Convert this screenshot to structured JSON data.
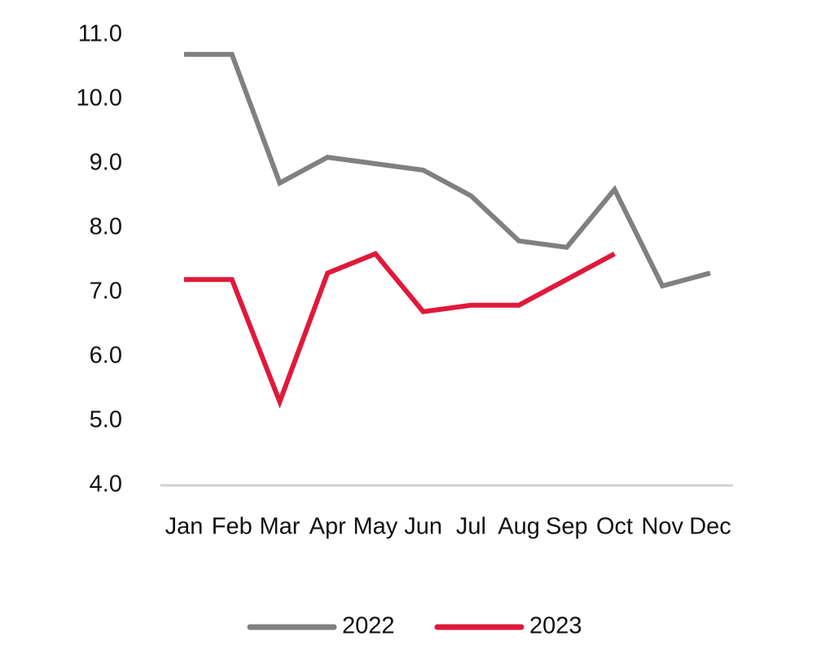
{
  "chart_data": {
    "type": "line",
    "categories": [
      "Jan",
      "Feb",
      "Mar",
      "Apr",
      "May",
      "Jun",
      "Jul",
      "Aug",
      "Sep",
      "Oct",
      "Nov",
      "Dec"
    ],
    "series": [
      {
        "name": "2022",
        "color": "#808080",
        "values": [
          10.7,
          10.7,
          8.7,
          9.1,
          9.0,
          8.9,
          8.5,
          7.8,
          7.7,
          8.6,
          7.1,
          7.3
        ]
      },
      {
        "name": "2023",
        "color": "#e0193a",
        "values": [
          7.2,
          7.2,
          5.3,
          7.3,
          7.6,
          6.7,
          6.8,
          6.8,
          7.2,
          7.6,
          null,
          null
        ]
      }
    ],
    "ylim": [
      4,
      11
    ],
    "yticks": [
      {
        "value": 4,
        "label": "4.0"
      },
      {
        "value": 5,
        "label": "5.0"
      },
      {
        "value": 6,
        "label": "6.0"
      },
      {
        "value": 7,
        "label": "7.0"
      },
      {
        "value": 8,
        "label": "8.0"
      },
      {
        "value": 9,
        "label": "9.0"
      },
      {
        "value": 10,
        "label": "10.0"
      },
      {
        "value": 11,
        "label": "11.0"
      }
    ],
    "grid": false,
    "legend": "bottom"
  }
}
